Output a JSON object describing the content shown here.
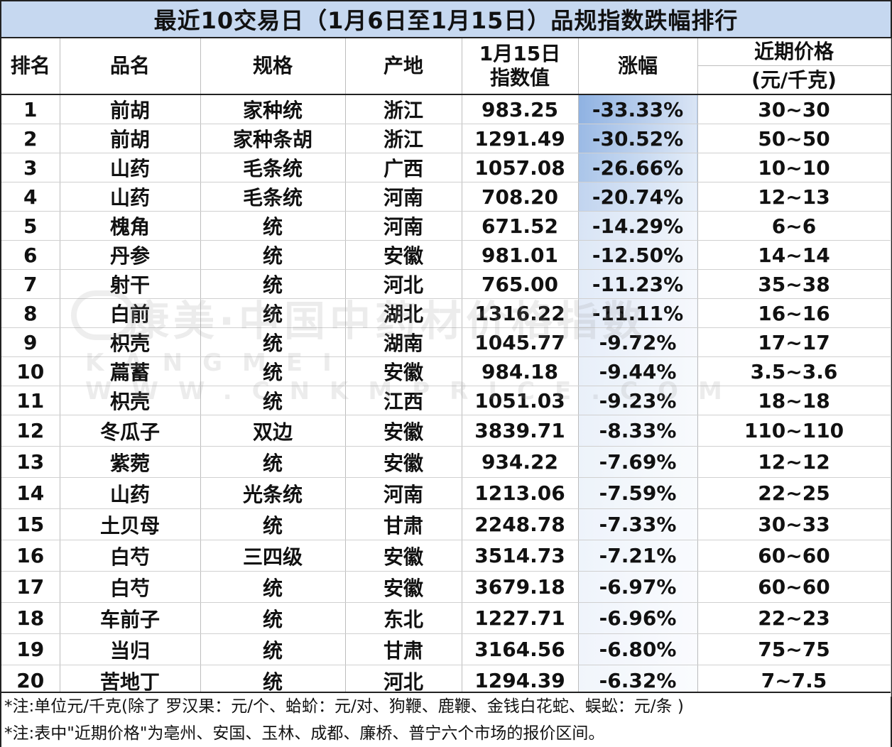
{
  "title": "最近10交易日（1月6日至1月15日）品规指数跌幅排行",
  "headers": {
    "rank": "排名",
    "name": "品名",
    "spec": "规格",
    "origin": "产地",
    "index_line1": "1月15日",
    "index_line2": "指数值",
    "change": "涨幅",
    "price_line1": "近期价格",
    "price_line2": "(元/千克)"
  },
  "colors": {
    "title_bg": "#c6d8f0",
    "change_gradient_strong": "#8fb2e2",
    "change_gradient_weak": "#ffffff"
  },
  "rows": [
    {
      "rank": "1",
      "name": "前胡",
      "spec": "家种统",
      "origin": "浙江",
      "index": "983.25",
      "change": "-33.33%",
      "change_value": -33.33,
      "price": "30~30"
    },
    {
      "rank": "2",
      "name": "前胡",
      "spec": "家种条胡",
      "origin": "浙江",
      "index": "1291.49",
      "change": "-30.52%",
      "change_value": -30.52,
      "price": "50~50"
    },
    {
      "rank": "3",
      "name": "山药",
      "spec": "毛条统",
      "origin": "广西",
      "index": "1057.08",
      "change": "-26.66%",
      "change_value": -26.66,
      "price": "10~10"
    },
    {
      "rank": "4",
      "name": "山药",
      "spec": "毛条统",
      "origin": "河南",
      "index": "708.20",
      "change": "-20.74%",
      "change_value": -20.74,
      "price": "12~13"
    },
    {
      "rank": "5",
      "name": "槐角",
      "spec": "统",
      "origin": "河南",
      "index": "671.52",
      "change": "-14.29%",
      "change_value": -14.29,
      "price": "6~6"
    },
    {
      "rank": "6",
      "name": "丹参",
      "spec": "统",
      "origin": "安徽",
      "index": "981.01",
      "change": "-12.50%",
      "change_value": -12.5,
      "price": "14~14"
    },
    {
      "rank": "7",
      "name": "射干",
      "spec": "统",
      "origin": "河北",
      "index": "765.00",
      "change": "-11.23%",
      "change_value": -11.23,
      "price": "35~38"
    },
    {
      "rank": "8",
      "name": "白前",
      "spec": "统",
      "origin": "湖北",
      "index": "1316.22",
      "change": "-11.11%",
      "change_value": -11.11,
      "price": "16~16"
    },
    {
      "rank": "9",
      "name": "枳壳",
      "spec": "统",
      "origin": "湖南",
      "index": "1045.77",
      "change": "-9.72%",
      "change_value": -9.72,
      "price": "17~17"
    },
    {
      "rank": "10",
      "name": "萹蓄",
      "spec": "统",
      "origin": "安徽",
      "index": "984.18",
      "change": "-9.44%",
      "change_value": -9.44,
      "price": "3.5~3.6"
    },
    {
      "rank": "11",
      "name": "枳壳",
      "spec": "统",
      "origin": "江西",
      "index": "1051.03",
      "change": "-9.23%",
      "change_value": -9.23,
      "price": "18~18"
    },
    {
      "rank": "12",
      "name": "冬瓜子",
      "spec": "双边",
      "origin": "安徽",
      "index": "3839.71",
      "change": "-8.33%",
      "change_value": -8.33,
      "price": "110~110"
    },
    {
      "rank": "13",
      "name": "紫菀",
      "spec": "统",
      "origin": "安徽",
      "index": "934.22",
      "change": "-7.69%",
      "change_value": -7.69,
      "price": "12~12"
    },
    {
      "rank": "14",
      "name": "山药",
      "spec": "光条统",
      "origin": "河南",
      "index": "1213.06",
      "change": "-7.59%",
      "change_value": -7.59,
      "price": "22~25"
    },
    {
      "rank": "15",
      "name": "土贝母",
      "spec": "统",
      "origin": "甘肃",
      "index": "2248.78",
      "change": "-7.33%",
      "change_value": -7.33,
      "price": "30~33"
    },
    {
      "rank": "16",
      "name": "白芍",
      "spec": "三四级",
      "origin": "安徽",
      "index": "3514.73",
      "change": "-7.21%",
      "change_value": -7.21,
      "price": "60~60"
    },
    {
      "rank": "17",
      "name": "白芍",
      "spec": "统",
      "origin": "安徽",
      "index": "3679.18",
      "change": "-6.97%",
      "change_value": -6.97,
      "price": "60~60"
    },
    {
      "rank": "18",
      "name": "车前子",
      "spec": "统",
      "origin": "东北",
      "index": "1227.71",
      "change": "-6.96%",
      "change_value": -6.96,
      "price": "22~23"
    },
    {
      "rank": "19",
      "name": "当归",
      "spec": "统",
      "origin": "甘肃",
      "index": "3164.56",
      "change": "-6.80%",
      "change_value": -6.8,
      "price": "75~75"
    },
    {
      "rank": "20",
      "name": "苦地丁",
      "spec": "统",
      "origin": "河北",
      "index": "1294.39",
      "change": "-6.32%",
      "change_value": -6.32,
      "price": "7~7.5"
    }
  ],
  "notes": [
    "*注:单位元/千克(除了 罗汉果：元/个、蛤蚧：元/对、狗鞭、鹿鞭、金钱白花蛇、蜈蚣：元/条 )",
    "*注:表中\"近期价格\"为亳州、安国、玉林、成都、廉桥、普宁六个市场的报价区间。"
  ],
  "watermark": {
    "line1": "康美·中国中药材价格指数",
    "line2": "KANGMEI WWW.CNKMPRICE.COM"
  }
}
